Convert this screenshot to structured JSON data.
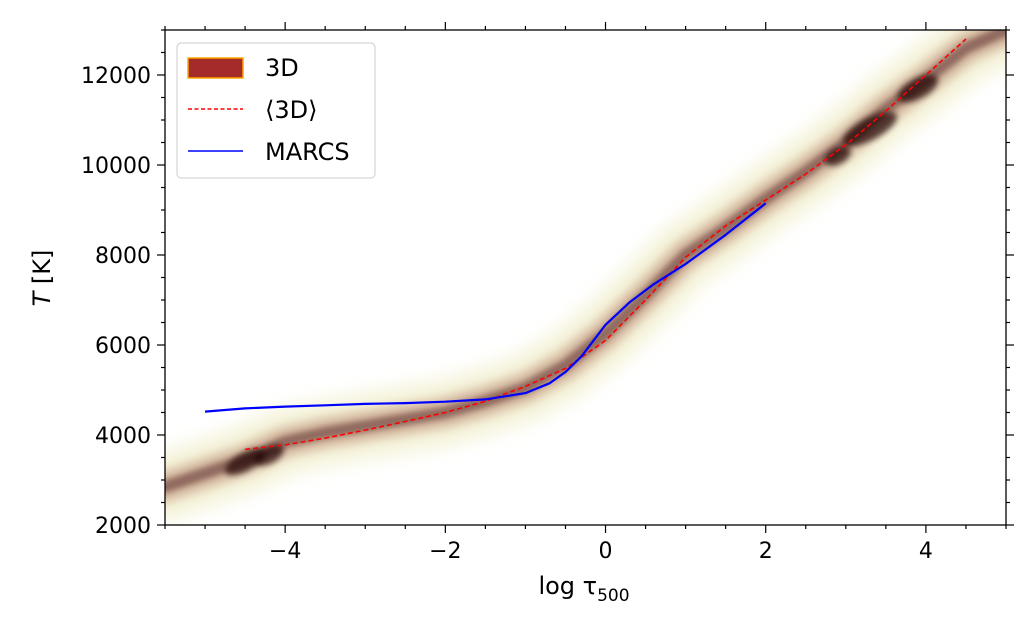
{
  "chart_data": {
    "type": "line",
    "xlabel_main": "log τ",
    "xlabel_sub": "500",
    "ylabel_main": "T",
    "ylabel_unit": " [K]",
    "xlim": [
      -5.5,
      5.0
    ],
    "ylim": [
      2000,
      13000
    ],
    "xticks": [
      -4,
      -2,
      0,
      2,
      4
    ],
    "xtick_labels": [
      "−4",
      "−2",
      "0",
      "2",
      "4"
    ],
    "yticks": [
      2000,
      4000,
      6000,
      8000,
      10000,
      12000
    ],
    "ytick_labels": [
      "2000",
      "4000",
      "6000",
      "8000",
      "10000",
      "12000"
    ],
    "legend_placement": "top-left",
    "grid": false,
    "series": [
      {
        "name": "3D",
        "style": "density",
        "color": "#a52a2a",
        "edge_color": "#ffa500",
        "x": [
          -5.5,
          -5.0,
          -4.5,
          -4.0,
          -3.5,
          -3.0,
          -2.5,
          -2.0,
          -1.5,
          -1.0,
          -0.5,
          0.0,
          0.5,
          1.0,
          1.5,
          2.0,
          2.5,
          3.0,
          3.5,
          4.0,
          4.5,
          5.0
        ],
        "y": [
          2850,
          3150,
          3450,
          3850,
          4050,
          4200,
          4350,
          4500,
          4750,
          5050,
          5550,
          6250,
          7100,
          8000,
          8600,
          9250,
          9850,
          10500,
          11250,
          11900,
          12600,
          13000
        ]
      },
      {
        "name": "⟨3D⟩",
        "style": "dashed",
        "color": "#ff0000",
        "x": [
          -4.5,
          -4.0,
          -3.5,
          -3.0,
          -2.5,
          -2.0,
          -1.5,
          -1.0,
          -0.5,
          0.0,
          0.5,
          1.0,
          1.5,
          2.0,
          2.5,
          3.0,
          3.5,
          4.0,
          4.5
        ],
        "y": [
          3680,
          3780,
          3930,
          4110,
          4300,
          4500,
          4750,
          5080,
          5480,
          6100,
          7000,
          7950,
          8650,
          9220,
          9800,
          10450,
          11200,
          12000,
          12800
        ]
      },
      {
        "name": "MARCS",
        "style": "solid",
        "color": "#0000ff",
        "x": [
          -5.0,
          -4.5,
          -4.0,
          -3.5,
          -3.0,
          -2.5,
          -2.0,
          -1.5,
          -1.0,
          -0.7,
          -0.5,
          -0.3,
          0.0,
          0.3,
          0.6,
          1.0,
          1.5,
          2.0
        ],
        "y": [
          4520,
          4590,
          4630,
          4660,
          4690,
          4710,
          4740,
          4790,
          4930,
          5150,
          5400,
          5750,
          6450,
          6950,
          7350,
          7800,
          8450,
          9150
        ]
      }
    ]
  }
}
